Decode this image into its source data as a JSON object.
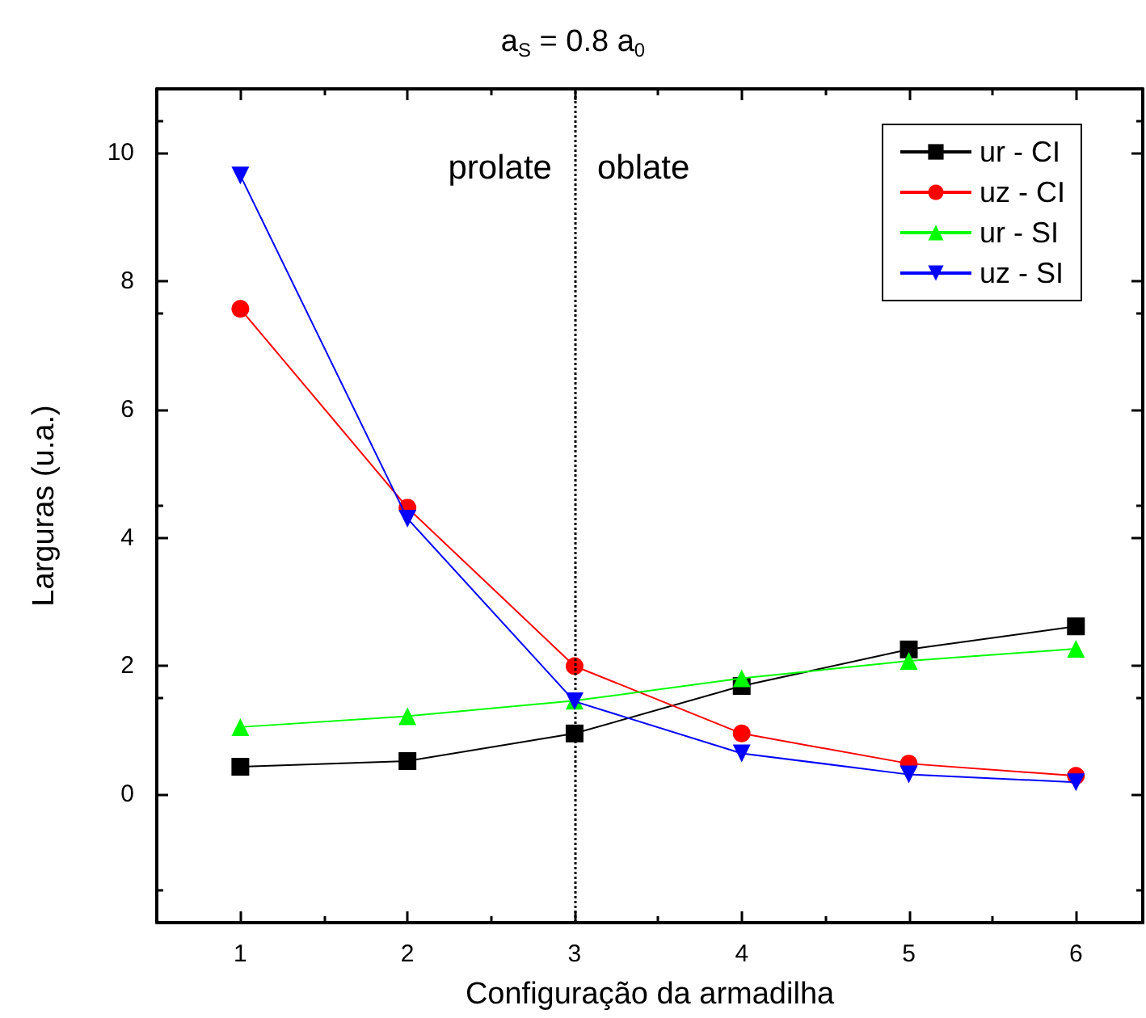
{
  "chart_data": {
    "type": "line",
    "title": "a$_{S}$ = 0.8 a$_{0}$",
    "xlabel": "Configuração da armadilha",
    "ylabel": "Larguras (u.a.)",
    "x": [
      1,
      2,
      3,
      4,
      5,
      6
    ],
    "xlim": [
      0.5,
      6.4
    ],
    "xticks": [
      1,
      2,
      3,
      4,
      5,
      6
    ],
    "ylim": [
      -2,
      11
    ],
    "yticks": [
      0,
      2,
      4,
      6,
      8,
      10
    ],
    "grid": false,
    "legend": "top right",
    "line_style": "solid",
    "series": [
      {
        "name": "ur - CI",
        "color": "#000000",
        "marker": "square",
        "values": [
          0.43,
          0.52,
          0.95,
          1.69,
          2.26,
          2.62
        ]
      },
      {
        "name": "uz - CI",
        "color": "#ff0000",
        "marker": "circle",
        "values": [
          7.57,
          4.47,
          2.0,
          0.95,
          0.48,
          0.29
        ]
      },
      {
        "name": "ur - SI",
        "color": "#00ff00",
        "marker": "triangle",
        "values": [
          1.05,
          1.22,
          1.46,
          1.81,
          2.08,
          2.27
        ]
      },
      {
        "name": "uz - SI",
        "color": "#0000ff",
        "marker": "triangle-down",
        "values": [
          9.65,
          4.3,
          1.45,
          0.64,
          0.31,
          0.19
        ]
      }
    ],
    "ref_lines": [
      {
        "axis": "x",
        "value": 3,
        "color": "#000000",
        "line_style": "dotted"
      }
    ],
    "annotations": [
      "prolate",
      "oblate"
    ]
  }
}
